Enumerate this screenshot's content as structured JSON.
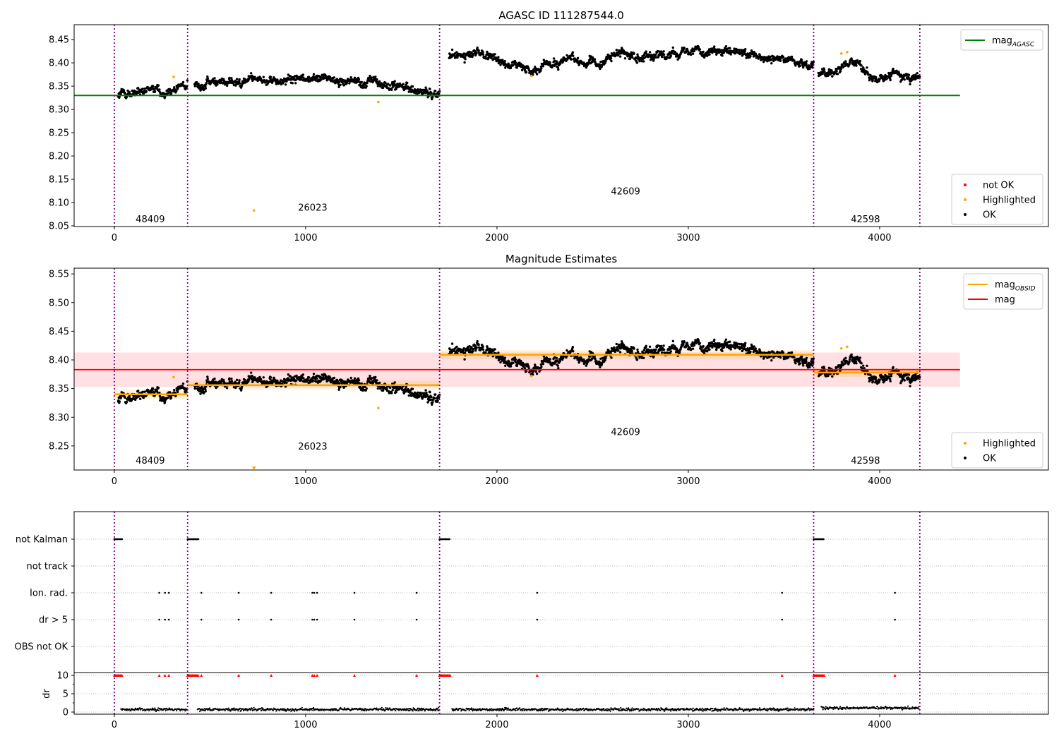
{
  "chart_data": [
    {
      "type": "scatter",
      "title": "AGASC ID 111287544.0",
      "ylim": [
        8.0485,
        8.482
      ],
      "xlim": [
        -210,
        4882
      ],
      "xticks": [
        0,
        1000,
        2000,
        3000,
        4000
      ],
      "yticks": [
        "8.05",
        "8.10",
        "8.15",
        "8.20",
        "8.25",
        "8.30",
        "8.35",
        "8.40",
        "8.45"
      ],
      "mag_agasc": 8.33,
      "legend_top": {
        "label": "mag",
        "sub": "AGASC",
        "color": "#008000"
      },
      "legend_bottom": [
        {
          "label": "not OK",
          "color": "#ff0000"
        },
        {
          "label": "Highlighted",
          "color": "#ffa500"
        },
        {
          "label": "OK",
          "color": "#000000"
        }
      ],
      "obsid_labels": [
        {
          "text": "48409",
          "x": 188,
          "y": 8.065
        },
        {
          "text": "26023",
          "x": 1037,
          "y": 8.09
        },
        {
          "text": "42609",
          "x": 2672,
          "y": 8.125
        },
        {
          "text": "42598",
          "x": 3926,
          "y": 8.065
        }
      ]
    },
    {
      "type": "scatter",
      "title": "Magnitude Estimates",
      "ylim": [
        8.208,
        8.56
      ],
      "xlim": [
        -210,
        4882
      ],
      "xticks": [
        0,
        1000,
        2000,
        3000,
        4000
      ],
      "yticks": [
        "8.25",
        "8.30",
        "8.35",
        "8.40",
        "8.45",
        "8.50",
        "8.55"
      ],
      "mag": 8.383,
      "mag_band": [
        8.353,
        8.413
      ],
      "legend_top": [
        {
          "label": "mag",
          "sub": "OBSID",
          "color": "#ffa500"
        },
        {
          "label": "mag",
          "sub": "",
          "color": "#ff0000"
        }
      ],
      "legend_bottom": [
        {
          "label": "Highlighted",
          "color": "#ffa500"
        },
        {
          "label": "OK",
          "color": "#000000"
        }
      ],
      "obsid_labels": [
        {
          "text": "48409",
          "x": 188,
          "y": 8.225
        },
        {
          "text": "26023",
          "x": 1037,
          "y": 8.25
        },
        {
          "text": "42609",
          "x": 2672,
          "y": 8.275
        },
        {
          "text": "42598",
          "x": 3926,
          "y": 8.225
        }
      ]
    },
    {
      "type": "scatter",
      "title": "",
      "flags": [
        "not Kalman",
        "not track",
        "Ion. rad.",
        "dr > 5",
        "OBS not OK"
      ],
      "dr_ylabel": "dr",
      "dr_yticks": [
        "0",
        "5",
        "10"
      ],
      "xticks": [
        0,
        1000,
        2000,
        3000,
        4000
      ],
      "ion_rad_x": [
        235,
        265,
        285,
        455,
        650,
        820,
        1035,
        1045,
        1060,
        1255,
        1580,
        2210,
        3490,
        4080
      ],
      "not_kalman_ranges": [
        [
          0,
          40
        ],
        [
          383,
          440
        ],
        [
          1700,
          1755
        ],
        [
          3655,
          3710
        ]
      ]
    }
  ],
  "observations": [
    {
      "obsid": "48409",
      "start": 0,
      "end": 383,
      "levels": [
        [
          20,
          8.33
        ],
        [
          200,
          8.338
        ],
        [
          383,
          8.35
        ]
      ],
      "mag_obsid": 8.34
    },
    {
      "obsid": "26023",
      "start": 383,
      "end": 1700,
      "levels": [
        [
          420,
          8.355
        ],
        [
          800,
          8.362
        ],
        [
          1100,
          8.368
        ],
        [
          1400,
          8.355
        ],
        [
          1700,
          8.337
        ]
      ],
      "mag_obsid": 8.356
    },
    {
      "obsid": "42609",
      "start": 1700,
      "end": 3655,
      "levels": [
        [
          1750,
          8.41
        ],
        [
          1900,
          8.42
        ],
        [
          2000,
          8.405
        ],
        [
          2150,
          8.387
        ],
        [
          2350,
          8.405
        ],
        [
          2550,
          8.398
        ],
        [
          2650,
          8.425
        ],
        [
          2800,
          8.413
        ],
        [
          3000,
          8.43
        ],
        [
          3200,
          8.422
        ],
        [
          3500,
          8.41
        ],
        [
          3655,
          8.395
        ]
      ],
      "mag_obsid": 8.409
    },
    {
      "obsid": "42598",
      "start": 3655,
      "end": 4210,
      "levels": [
        [
          3680,
          8.38
        ],
        [
          3780,
          8.385
        ],
        [
          3850,
          8.405
        ],
        [
          3920,
          8.385
        ],
        [
          4000,
          8.36
        ],
        [
          4100,
          8.38
        ],
        [
          4210,
          8.37
        ]
      ],
      "mag_obsid": 8.378
    }
  ],
  "highlighted": [
    [
      310,
      8.37
    ],
    [
      730,
      8.083
    ],
    [
      1380,
      8.316
    ],
    [
      2180,
      8.372
    ],
    [
      3800,
      8.42
    ],
    [
      3830,
      8.423
    ]
  ],
  "colors": {
    "ok": "#000000",
    "highlighted": "#ffa500",
    "not_ok": "#ff0000",
    "agasc": "#008000",
    "obsid_line": "#800080",
    "mag": "#ff0000",
    "band": "#ffe0e3"
  }
}
